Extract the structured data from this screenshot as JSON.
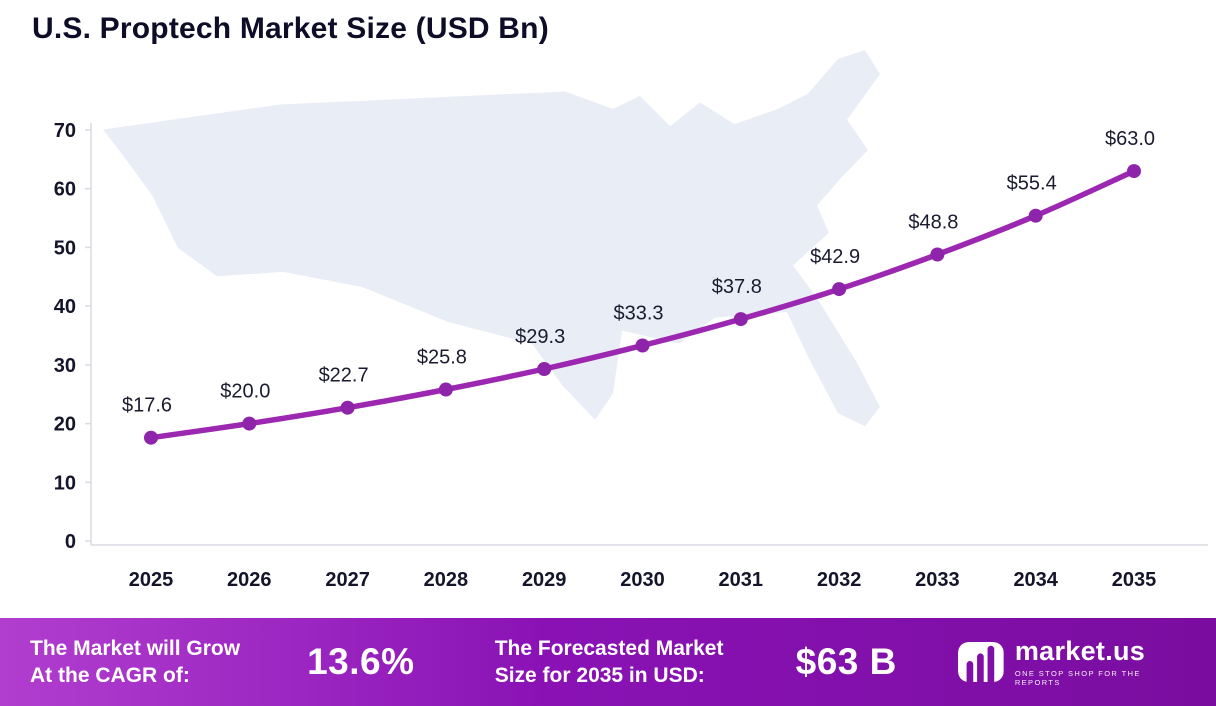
{
  "title": "U.S. Proptech Market Size (USD Bn)",
  "colors": {
    "line": "#9c27b0",
    "marker": "#8e24aa",
    "map_fill": "#e9edf6",
    "axis": "#d8dbe4",
    "text_dark": "#14142b",
    "footer_start": "#b13ecf",
    "footer_end": "#7a0da0"
  },
  "chart_data": {
    "type": "line",
    "title": "U.S. Proptech Market Size (USD Bn)",
    "categories": [
      "2025",
      "2026",
      "2027",
      "2028",
      "2029",
      "2030",
      "2031",
      "2032",
      "2033",
      "2034",
      "2035"
    ],
    "values": [
      17.6,
      20.0,
      22.7,
      25.8,
      29.3,
      33.3,
      37.8,
      42.9,
      48.8,
      55.4,
      63.0
    ],
    "point_labels": [
      "$17.6",
      "$20.0",
      "$22.7",
      "$25.8",
      "$29.3",
      "$33.3",
      "$37.8",
      "$42.9",
      "$48.8",
      "$55.4",
      "$63.0"
    ],
    "xlabel": "",
    "ylabel": "",
    "ylim": [
      0,
      70
    ],
    "yticks": [
      0,
      10,
      20,
      30,
      40,
      50,
      60,
      70
    ],
    "grid": false,
    "legend": false,
    "background": "us-map-silhouette"
  },
  "footer": {
    "cagr_label_line1": "The Market will Grow",
    "cagr_label_line2": "At the CAGR of:",
    "cagr_value": "13.6%",
    "forecast_label_line1": "The Forecasted Market",
    "forecast_label_line2": "Size for 2035 in USD:",
    "forecast_value": "$63 B",
    "logo_text": "market.us",
    "logo_tagline": "ONE STOP SHOP FOR THE REPORTS"
  }
}
